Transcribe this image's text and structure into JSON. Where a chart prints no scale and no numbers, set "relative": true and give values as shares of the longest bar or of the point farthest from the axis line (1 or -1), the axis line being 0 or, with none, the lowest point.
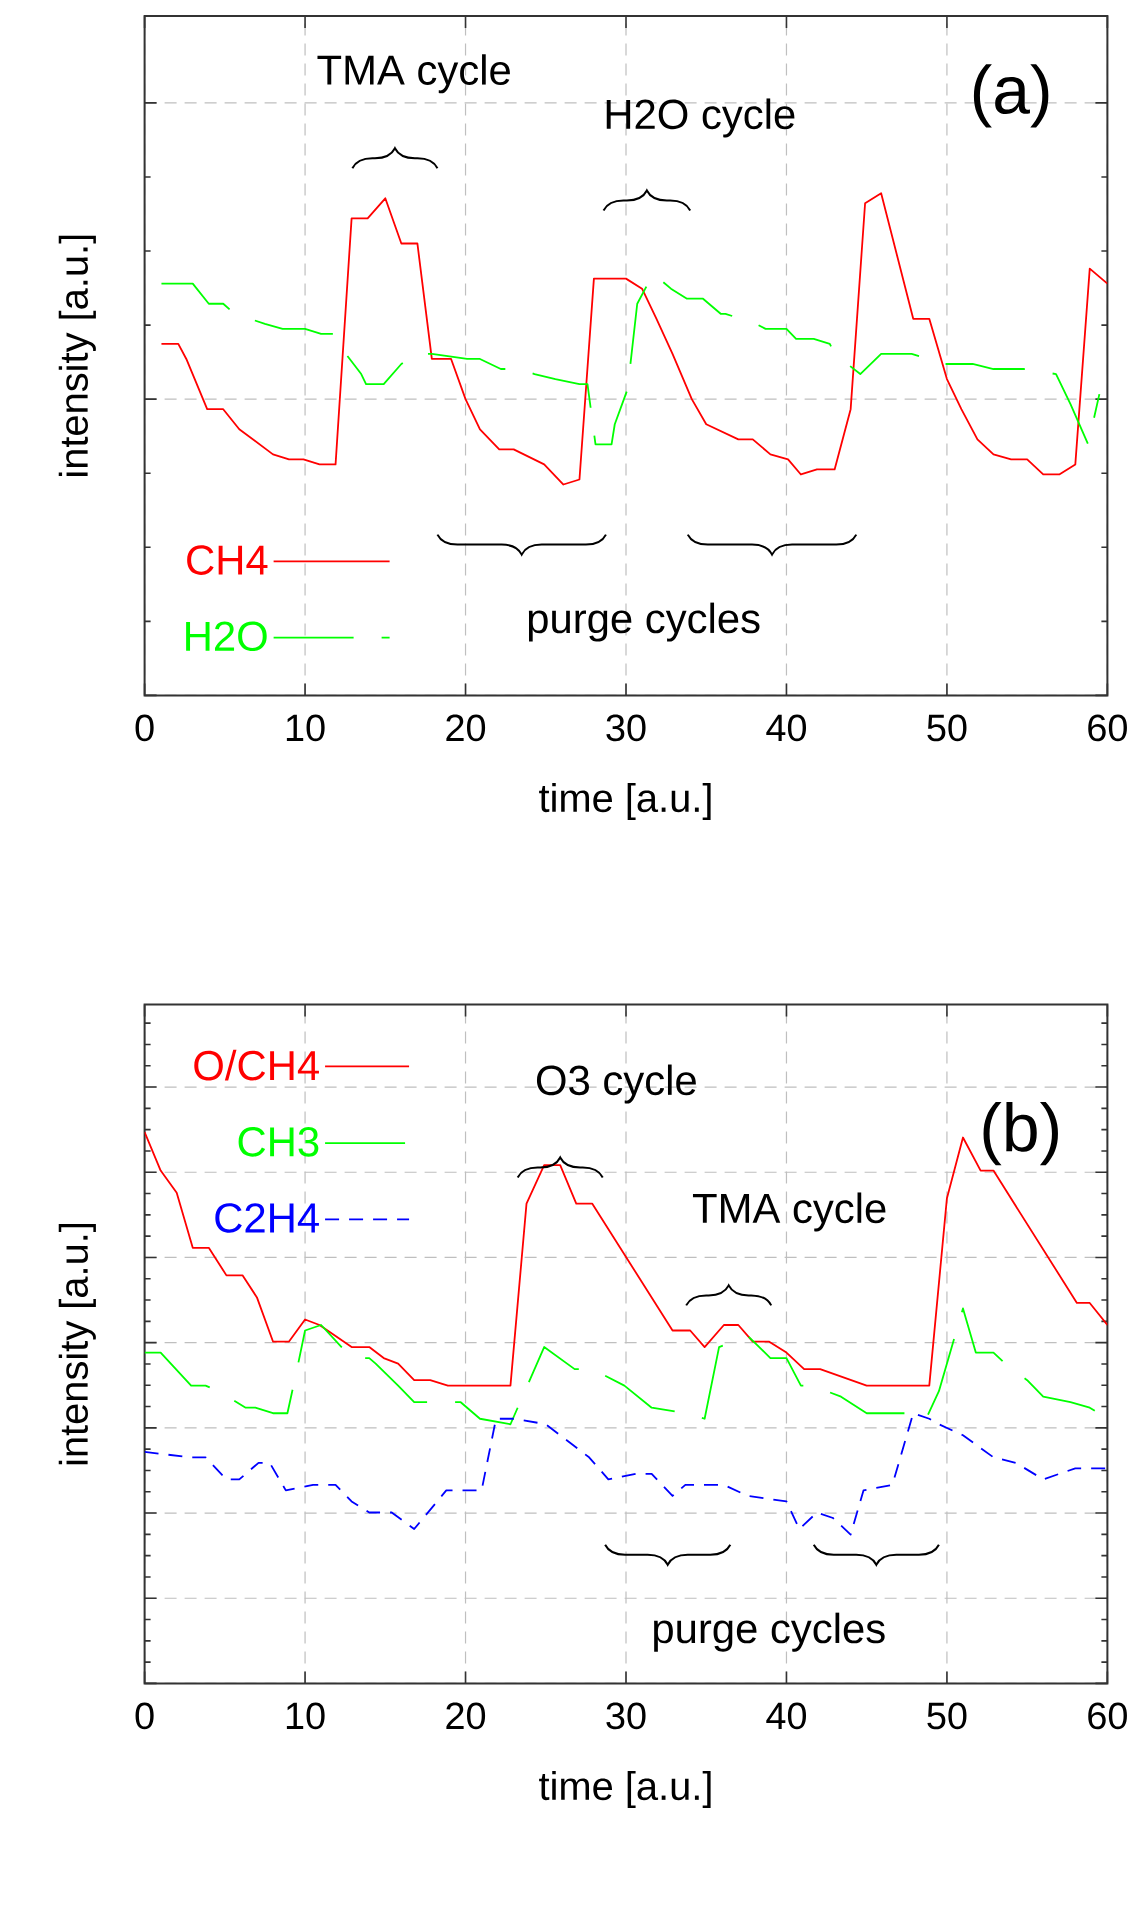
{
  "chart_data": [
    {
      "type": "line",
      "relative": true,
      "xlabel": "time [a.u.]",
      "ylabel": "intensity [a.u.]",
      "xlim": [
        0,
        60
      ],
      "xticks": [
        0,
        10,
        20,
        30,
        40,
        50,
        60
      ],
      "tick_labels": "x",
      "grid": true,
      "legend": "bottom left",
      "series": [
        {
          "name": "CH4",
          "color": "#ff0000",
          "line_style": "solid",
          "x": [
            1.05,
            2.1,
            2.6,
            3.9,
            4.9,
            5.9,
            8.0,
            9.0,
            9.9,
            10.9,
            11.9,
            12.9,
            13.9,
            15.0,
            16.0,
            17.0,
            17.9,
            19.1,
            20.0,
            20.9,
            22.1,
            23.0,
            24.9,
            26.1,
            27.1,
            28.0,
            30.0,
            31.0,
            31.9,
            32.9,
            34.1,
            35.0,
            37.0,
            37.9,
            39.0,
            40.1,
            40.9,
            41.9,
            43.0,
            44.0,
            44.9,
            45.9,
            47.9,
            48.9,
            50.0,
            50.9,
            51.9,
            52.9,
            54.0,
            55.0,
            56.0,
            57.0,
            58.0,
            58.9,
            60
          ],
          "values": [
            0.7,
            0.7,
            0.67,
            0.57,
            0.57,
            0.53,
            0.48,
            0.47,
            0.47,
            0.46,
            0.46,
            0.95,
            0.95,
            0.99,
            0.9,
            0.9,
            0.67,
            0.67,
            0.59,
            0.53,
            0.49,
            0.49,
            0.46,
            0.42,
            0.43,
            0.83,
            0.83,
            0.81,
            0.75,
            0.68,
            0.59,
            0.54,
            0.51,
            0.51,
            0.48,
            0.47,
            0.44,
            0.45,
            0.45,
            0.57,
            0.98,
            1.0,
            0.75,
            0.75,
            0.63,
            0.57,
            0.51,
            0.48,
            0.47,
            0.47,
            0.44,
            0.44,
            0.46,
            0.85,
            0.82
          ]
        },
        {
          "name": "H2O",
          "color": "#00ff00",
          "line_style": "dashed",
          "x": [
            1.05,
            3.0,
            4.0,
            4.9,
            5.6,
            7.5,
            8.6,
            10.0,
            11.0,
            11.9,
            12.3,
            13.5,
            13.8,
            14.9,
            16.0,
            16.9,
            17.9,
            20.1,
            20.9,
            22.2,
            23.4,
            24.3,
            25.6,
            27.1,
            27.6,
            28.1,
            29.1,
            29.3,
            30.1,
            30.7,
            31.7,
            32.8,
            33.8,
            34.8,
            35.9,
            36.2,
            38.1,
            38.7,
            40.0,
            40.6,
            41.7,
            42.7,
            43.0,
            44.6,
            45.9,
            47.8,
            48.9,
            49.6,
            51.6,
            52.9,
            54.8,
            56.8,
            57.7,
            58.8,
            59.5
          ],
          "values": [
            0.82,
            0.82,
            0.78,
            0.78,
            0.76,
            0.74,
            0.73,
            0.73,
            0.72,
            0.72,
            0.69,
            0.64,
            0.62,
            0.62,
            0.66,
            0.68,
            0.68,
            0.67,
            0.67,
            0.65,
            0.65,
            0.64,
            0.63,
            0.62,
            0.62,
            0.5,
            0.5,
            0.54,
            0.61,
            0.78,
            0.84,
            0.81,
            0.79,
            0.79,
            0.76,
            0.76,
            0.74,
            0.73,
            0.73,
            0.71,
            0.71,
            0.7,
            0.68,
            0.64,
            0.68,
            0.68,
            0.67,
            0.66,
            0.66,
            0.65,
            0.65,
            0.64,
            0.58,
            0.5,
            0.6
          ]
        }
      ],
      "annotations": [
        "TMA cycle",
        "H2O cycle",
        "purge cycles",
        "(a)"
      ]
    },
    {
      "type": "line",
      "relative": true,
      "xlabel": "time [a.u.]",
      "ylabel": "intensity [a.u.]",
      "xlim": [
        0,
        60
      ],
      "xticks": [
        0,
        10,
        20,
        30,
        40,
        50,
        60
      ],
      "tick_labels": "x",
      "grid": true,
      "legend": "top left",
      "series": [
        {
          "name": "O/CH4",
          "color": "#ff0000",
          "line_style": "solid",
          "x": [
            0,
            1.0,
            2.0,
            3.0,
            4.0,
            5.1,
            6.1,
            7.0,
            8.0,
            9.0,
            10.0,
            10.9,
            12.9,
            14.0,
            14.9,
            15.8,
            16.8,
            17.8,
            18.9,
            20.9,
            22.8,
            23.8,
            24.9,
            25.9,
            26.9,
            27.9,
            32.9,
            34.0,
            34.9,
            36.1,
            37.0,
            37.9,
            38.9,
            40.0,
            41.1,
            42.1,
            45.0,
            47.1,
            48.9,
            50.0,
            51.0,
            52.1,
            52.9,
            58.1,
            58.9,
            60
          ],
          "values": [
            1.0,
            0.93,
            0.89,
            0.79,
            0.79,
            0.74,
            0.74,
            0.7,
            0.62,
            0.62,
            0.66,
            0.65,
            0.61,
            0.61,
            0.59,
            0.58,
            0.55,
            0.55,
            0.54,
            0.54,
            0.54,
            0.87,
            0.94,
            0.94,
            0.87,
            0.87,
            0.64,
            0.64,
            0.61,
            0.65,
            0.65,
            0.62,
            0.62,
            0.6,
            0.57,
            0.57,
            0.54,
            0.54,
            0.54,
            0.88,
            0.99,
            0.93,
            0.93,
            0.69,
            0.69,
            0.65
          ]
        },
        {
          "name": "CH3",
          "color": "#00ff00",
          "line_style": "dashed",
          "x": [
            0,
            1.0,
            2.9,
            3.8,
            4.6,
            6.3,
            6.9,
            8.0,
            8.9,
            9.5,
            10.0,
            11.0,
            12.9,
            14.0,
            14.4,
            15.8,
            16.8,
            18.9,
            19.7,
            20.9,
            22.8,
            24.9,
            26.8,
            27.9,
            29.9,
            31.6,
            33.7,
            34.9,
            35.8,
            37.6,
            39.0,
            40.0,
            40.9,
            41.6,
            43.4,
            45.0,
            47.1,
            48.2,
            48.7,
            49.5,
            51.0,
            51.8,
            52.9,
            54.0,
            55.0,
            56.0,
            57.7,
            58.9,
            60
          ],
          "values": [
            0.6,
            0.6,
            0.54,
            0.54,
            0.53,
            0.5,
            0.5,
            0.49,
            0.49,
            0.57,
            0.64,
            0.65,
            0.59,
            0.59,
            0.58,
            0.54,
            0.51,
            0.51,
            0.51,
            0.48,
            0.47,
            0.61,
            0.57,
            0.57,
            0.54,
            0.5,
            0.49,
            0.48,
            0.61,
            0.63,
            0.59,
            0.59,
            0.54,
            0.54,
            0.52,
            0.49,
            0.49,
            0.49,
            0.48,
            0.53,
            0.68,
            0.6,
            0.6,
            0.57,
            0.55,
            0.52,
            0.51,
            0.5,
            0.48
          ]
        },
        {
          "name": "C2H4",
          "color": "#0000ff",
          "line_style": "dashed",
          "x": [
            0,
            2.8,
            3.8,
            5.1,
            5.9,
            7.1,
            7.8,
            8.8,
            10.5,
            11.9,
            12.9,
            14.0,
            15.4,
            16.8,
            18.8,
            21.0,
            21.9,
            23.1,
            25.0,
            27.7,
            28.9,
            30.6,
            31.6,
            32.9,
            33.7,
            36.1,
            37.6,
            40.0,
            40.8,
            41.9,
            42.9,
            44.0,
            44.8,
            46.6,
            47.9,
            48.9,
            49.5,
            51.0,
            52.9,
            54.3,
            56.0,
            58.0,
            60
          ],
          "values": [
            0.42,
            0.41,
            0.41,
            0.37,
            0.37,
            0.4,
            0.4,
            0.35,
            0.36,
            0.36,
            0.33,
            0.31,
            0.31,
            0.28,
            0.35,
            0.35,
            0.48,
            0.48,
            0.47,
            0.41,
            0.37,
            0.38,
            0.38,
            0.34,
            0.36,
            0.36,
            0.34,
            0.33,
            0.28,
            0.31,
            0.3,
            0.27,
            0.35,
            0.36,
            0.49,
            0.48,
            0.47,
            0.45,
            0.41,
            0.4,
            0.37,
            0.39,
            0.39
          ]
        }
      ],
      "annotations": [
        "O3 cycle",
        "TMA cycle",
        "purge cycles",
        "(b)"
      ]
    }
  ]
}
